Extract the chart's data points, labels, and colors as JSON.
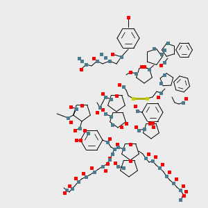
{
  "bg": "#ececec",
  "bond_color": "#000000",
  "N_color": "#4a7c8e",
  "O_color": "#ff0000",
  "S_color": "#cccc00",
  "lw": 0.7,
  "sq": 0.018
}
